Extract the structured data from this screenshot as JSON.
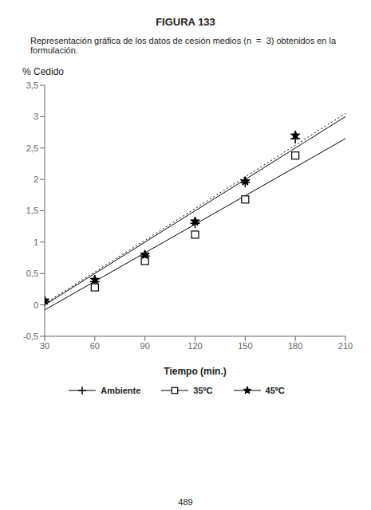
{
  "chart_data": {
    "type": "scatter",
    "title": "FIGURA 133",
    "subtitle": "Representación gráfica de los datos de cesión medios (n  =  3) obtenidos en la\nformulación.",
    "annotations": [
      "489"
    ],
    "x_label": "Tiempo (min.)",
    "y_label": "% Cedido",
    "xlim": [
      30,
      210
    ],
    "xticks": [
      30,
      60,
      90,
      120,
      150,
      180,
      210
    ],
    "ylim": [
      -0.5,
      3.5
    ],
    "yticks": [
      {
        "value": -0.5,
        "label": "-0,5"
      },
      0,
      {
        "value": 0.5,
        "label": "0,5"
      },
      1,
      {
        "value": 1.5,
        "label": "1,5"
      },
      2,
      {
        "value": 2.5,
        "label": "2,5"
      },
      3,
      {
        "value": 3.5,
        "label": "3,5"
      }
    ],
    "grid": false,
    "legend": "bottom",
    "series": [
      {
        "name": "Ambiente",
        "type": "scatter",
        "marker": "plus",
        "color": "#000000",
        "x": [
          30,
          60,
          90,
          120,
          150,
          180
        ],
        "values": [
          0.05,
          0.37,
          0.78,
          1.3,
          1.95,
          2.65
        ]
      },
      {
        "name": "35ºC",
        "type": "scatter",
        "marker": "square",
        "color": "#000000",
        "x": [
          60,
          90,
          120,
          150,
          180
        ],
        "values": [
          0.28,
          0.7,
          1.12,
          1.68,
          2.38
        ]
      },
      {
        "name": "45ºC",
        "type": "scatter",
        "marker": "star",
        "color": "#000000",
        "x": [
          30,
          60,
          90,
          120,
          150,
          180
        ],
        "values": [
          0.07,
          0.4,
          0.8,
          1.33,
          1.97,
          2.7
        ]
      },
      {
        "type": "line",
        "line_style": "solid",
        "color": "#000000",
        "x": [
          30,
          210
        ],
        "values": [
          0.0,
          3.0
        ]
      },
      {
        "type": "line",
        "line_style": "solid",
        "color": "#000000",
        "x": [
          30,
          210
        ],
        "values": [
          -0.08,
          2.65
        ]
      },
      {
        "type": "line",
        "line_style": "dotted",
        "color": "#000000",
        "x": [
          30,
          210
        ],
        "values": [
          0.02,
          3.05
        ]
      }
    ]
  }
}
